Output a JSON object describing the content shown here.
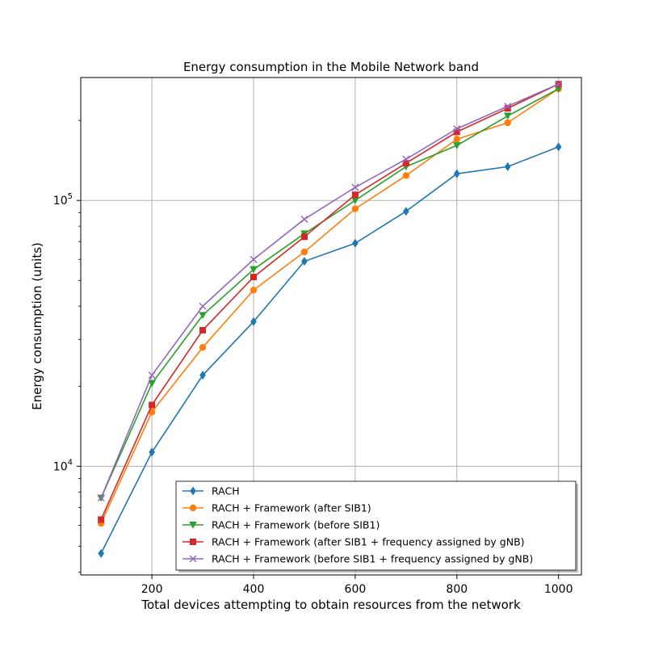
{
  "chart_data": {
    "type": "line",
    "title": "Energy consumption in the Mobile Network band",
    "xlabel": "Total devices attempting to obtain resources from the network",
    "ylabel": "Energy consumption (units)",
    "yscale": "log",
    "xlim": [
      60,
      1045
    ],
    "ylim": [
      3900,
      290000
    ],
    "grid": true,
    "legend_position": "lower-right",
    "x": [
      100,
      200,
      300,
      400,
      500,
      600,
      700,
      800,
      900,
      1000
    ],
    "x_ticks": [
      {
        "value": 200,
        "label": "200"
      },
      {
        "value": 400,
        "label": "400"
      },
      {
        "value": 600,
        "label": "600"
      },
      {
        "value": 800,
        "label": "800"
      },
      {
        "value": 1000,
        "label": "1000"
      }
    ],
    "y_ticks": [
      {
        "value": 10000,
        "base": "10",
        "exp": "4"
      },
      {
        "value": 100000,
        "base": "10",
        "exp": "5"
      }
    ],
    "series": [
      {
        "name": "RACH",
        "color": "#1f77b4",
        "marker": "diamond",
        "values": [
          4700,
          11300,
          22000,
          35000,
          59000,
          69000,
          91000,
          126000,
          134000,
          159000
        ]
      },
      {
        "name": "RACH + Framework (after SIB1)",
        "color": "#ff7f0e",
        "marker": "circle",
        "values": [
          6100,
          16000,
          28000,
          46000,
          64000,
          93000,
          124000,
          170000,
          196000,
          263000
        ]
      },
      {
        "name": "RACH + Framework (before SIB1)",
        "color": "#2ca02c",
        "marker": "triangle-down",
        "values": [
          7600,
          20500,
          37000,
          55000,
          75000,
          100000,
          134000,
          161000,
          208000,
          263000
        ]
      },
      {
        "name": "RACH + Framework (after SIB1 + frequency assigned by gNB)",
        "color": "#d62728",
        "marker": "square",
        "values": [
          6300,
          17000,
          32500,
          51500,
          73000,
          105000,
          138000,
          181000,
          222000,
          274000
        ]
      },
      {
        "name": "RACH + Framework (before SIB1 + frequency assigned by gNB)",
        "color": "#9467bd",
        "marker": "x",
        "values": [
          7600,
          22000,
          40000,
          60000,
          85000,
          112000,
          143000,
          186000,
          226000,
          274000
        ]
      }
    ]
  }
}
